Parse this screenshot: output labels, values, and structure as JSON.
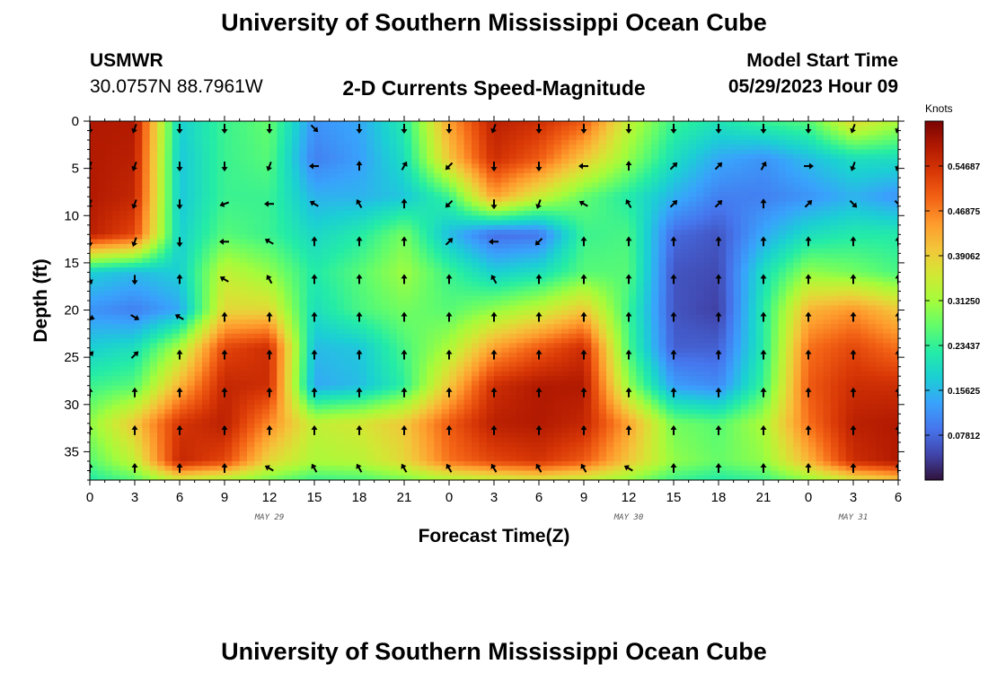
{
  "header": {
    "title": "University of Southern Mississippi Ocean Cube",
    "station": "USMWR",
    "coords": "30.0757N  88.7961W",
    "subtitle": "2-D Currents Speed-Magnitude",
    "model_label": "Model Start Time",
    "model_time": "05/29/2023 Hour 09"
  },
  "footer": {
    "title": "University of Southern Mississippi Ocean Cube"
  },
  "chart_data": {
    "type": "heatmap",
    "subtype": "time-depth current speed with direction arrows",
    "xlabel": "Forecast Time(Z)",
    "ylabel": "Depth (ft)",
    "x_range_hours": [
      0,
      54
    ],
    "y_range_ft": [
      0,
      38
    ],
    "y_inverted": true,
    "x_tick_labels": [
      "0",
      "3",
      "6",
      "9",
      "12",
      "15",
      "18",
      "21",
      "0",
      "3",
      "6",
      "9",
      "12",
      "15",
      "18",
      "21",
      "0",
      "3",
      "6"
    ],
    "y_tick_labels": [
      "0",
      "5",
      "10",
      "15",
      "20",
      "25",
      "30",
      "35"
    ],
    "y_tick_values": [
      0,
      5,
      10,
      15,
      20,
      25,
      30,
      35
    ],
    "date_labels": [
      {
        "text": "MAY 29",
        "hour": 12
      },
      {
        "text": "MAY 30",
        "hour": 36
      },
      {
        "text": "MAY 31",
        "hour": 51
      }
    ],
    "colorbar": {
      "title": "Knots",
      "min": 0.0,
      "max": 0.625,
      "labels": [
        "0.54687",
        "0.46875",
        "0.39062",
        "0.31250",
        "0.23437",
        "0.15625",
        "0.07812"
      ],
      "values": [
        0.54687,
        0.46875,
        0.39062,
        0.3125,
        0.23437,
        0.15625,
        0.07812
      ],
      "colormap": [
        "#30123b",
        "#4145ab",
        "#4675ed",
        "#39a2fc",
        "#1bcfd4",
        "#24eca6",
        "#61fc6c",
        "#a4fc3b",
        "#d1e834",
        "#f3c63a",
        "#fe9b2d",
        "#f36315",
        "#d93806",
        "#b11901",
        "#7a0403"
      ]
    },
    "speed_grid": {
      "x_hours": [
        0,
        3,
        6,
        9,
        12,
        15,
        18,
        21,
        24,
        27,
        30,
        33,
        36,
        39,
        42,
        45,
        48,
        51,
        54
      ],
      "depth_ft": [
        0,
        4,
        8,
        12,
        16,
        20,
        24,
        28,
        32,
        36,
        38
      ],
      "values": [
        [
          0.58,
          0.58,
          0.18,
          0.24,
          0.27,
          0.12,
          0.14,
          0.22,
          0.44,
          0.57,
          0.55,
          0.5,
          0.34,
          0.24,
          0.21,
          0.24,
          0.26,
          0.38,
          0.32
        ],
        [
          0.58,
          0.57,
          0.17,
          0.24,
          0.26,
          0.1,
          0.13,
          0.2,
          0.4,
          0.55,
          0.5,
          0.4,
          0.3,
          0.2,
          0.14,
          0.12,
          0.16,
          0.2,
          0.2
        ],
        [
          0.58,
          0.56,
          0.17,
          0.24,
          0.24,
          0.15,
          0.15,
          0.17,
          0.24,
          0.44,
          0.35,
          0.27,
          0.22,
          0.15,
          0.1,
          0.1,
          0.12,
          0.15,
          0.12
        ],
        [
          0.57,
          0.52,
          0.18,
          0.26,
          0.24,
          0.19,
          0.22,
          0.28,
          0.16,
          0.08,
          0.09,
          0.24,
          0.25,
          0.08,
          0.06,
          0.14,
          0.2,
          0.22,
          0.22
        ],
        [
          0.18,
          0.16,
          0.18,
          0.34,
          0.3,
          0.22,
          0.26,
          0.31,
          0.24,
          0.18,
          0.2,
          0.26,
          0.26,
          0.06,
          0.05,
          0.2,
          0.3,
          0.28,
          0.25
        ],
        [
          0.12,
          0.1,
          0.14,
          0.38,
          0.38,
          0.2,
          0.25,
          0.28,
          0.26,
          0.3,
          0.34,
          0.4,
          0.24,
          0.06,
          0.04,
          0.22,
          0.42,
          0.45,
          0.4
        ],
        [
          0.18,
          0.2,
          0.32,
          0.52,
          0.55,
          0.16,
          0.17,
          0.25,
          0.32,
          0.44,
          0.5,
          0.55,
          0.25,
          0.07,
          0.07,
          0.22,
          0.48,
          0.52,
          0.48
        ],
        [
          0.24,
          0.26,
          0.42,
          0.56,
          0.55,
          0.14,
          0.16,
          0.23,
          0.4,
          0.55,
          0.58,
          0.58,
          0.3,
          0.13,
          0.11,
          0.24,
          0.5,
          0.55,
          0.55
        ],
        [
          0.3,
          0.4,
          0.54,
          0.57,
          0.46,
          0.34,
          0.36,
          0.4,
          0.5,
          0.57,
          0.58,
          0.56,
          0.44,
          0.28,
          0.26,
          0.32,
          0.48,
          0.57,
          0.58
        ],
        [
          0.26,
          0.34,
          0.56,
          0.52,
          0.38,
          0.32,
          0.33,
          0.38,
          0.48,
          0.52,
          0.54,
          0.5,
          0.4,
          0.3,
          0.27,
          0.3,
          0.42,
          0.55,
          0.58
        ],
        [
          0.22,
          0.26,
          0.35,
          0.32,
          0.28,
          0.24,
          0.25,
          0.28,
          0.32,
          0.34,
          0.36,
          0.34,
          0.3,
          0.24,
          0.22,
          0.24,
          0.3,
          0.36,
          0.4
        ]
      ]
    },
    "direction_arrows": {
      "x_hours": [
        0,
        3,
        6,
        9,
        12,
        15,
        18,
        21,
        24,
        27,
        30,
        33,
        36,
        39,
        42,
        45,
        48,
        51,
        54
      ],
      "depth_ft": [
        0,
        4,
        8,
        12,
        16,
        20,
        24,
        28,
        32,
        36
      ],
      "angles_deg": [
        [
          180,
          200,
          180,
          180,
          180,
          135,
          180,
          180,
          180,
          200,
          180,
          180,
          180,
          180,
          180,
          180,
          180,
          200,
          200
        ],
        [
          200,
          200,
          180,
          180,
          200,
          270,
          0,
          30,
          225,
          180,
          180,
          270,
          0,
          45,
          45,
          30,
          90,
          200,
          200
        ],
        [
          200,
          200,
          180,
          250,
          270,
          300,
          330,
          0,
          225,
          180,
          200,
          300,
          330,
          45,
          45,
          0,
          45,
          135,
          135
        ],
        [
          180,
          200,
          180,
          270,
          300,
          0,
          0,
          0,
          45,
          270,
          225,
          0,
          0,
          0,
          0,
          0,
          0,
          0,
          0
        ],
        [
          160,
          180,
          0,
          300,
          330,
          0,
          0,
          0,
          0,
          330,
          0,
          0,
          0,
          0,
          0,
          0,
          0,
          0,
          0
        ],
        [
          110,
          120,
          300,
          0,
          0,
          0,
          0,
          0,
          0,
          0,
          0,
          0,
          0,
          0,
          0,
          0,
          0,
          0,
          0
        ],
        [
          45,
          45,
          0,
          0,
          0,
          0,
          0,
          0,
          0,
          0,
          0,
          0,
          0,
          0,
          0,
          0,
          0,
          0,
          0
        ],
        [
          0,
          0,
          0,
          0,
          0,
          0,
          0,
          0,
          0,
          0,
          0,
          0,
          0,
          0,
          0,
          0,
          0,
          0,
          0
        ],
        [
          0,
          0,
          0,
          0,
          0,
          0,
          0,
          0,
          0,
          0,
          0,
          0,
          0,
          0,
          0,
          0,
          0,
          0,
          0
        ],
        [
          0,
          0,
          0,
          0,
          300,
          330,
          330,
          330,
          330,
          330,
          330,
          330,
          300,
          0,
          0,
          0,
          0,
          0,
          0
        ]
      ]
    },
    "grid": false
  }
}
